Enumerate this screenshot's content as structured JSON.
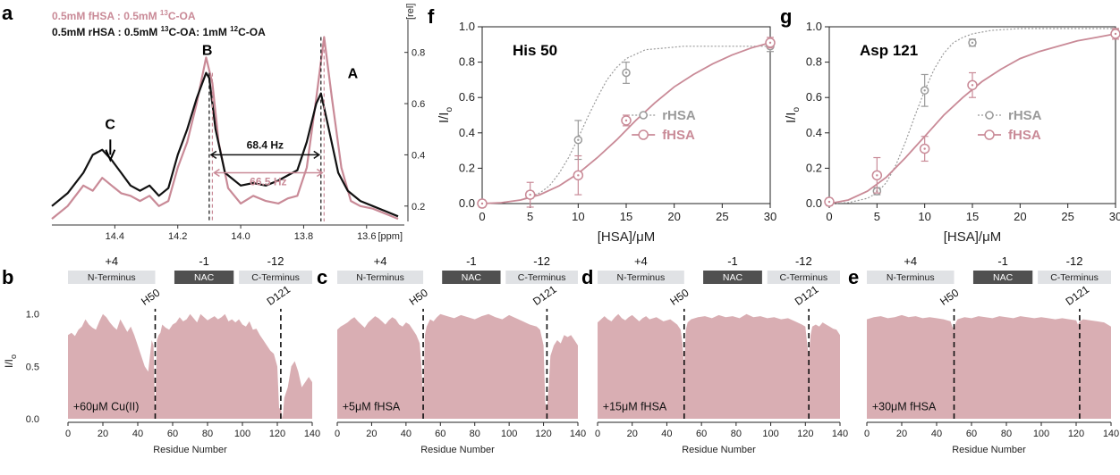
{
  "colors": {
    "fhsa": "#c98a97",
    "rhsa": "#9a9a9a",
    "black": "#111111",
    "fill": "#d9aeb3",
    "gray_box": "#e0e2e5",
    "dark_box": "#505050"
  },
  "chart_data": [
    {
      "panel": "a",
      "type": "line",
      "legend": [
        "0.5mM fHSA : 0.5mM 13C-OA",
        "0.5mM rHSA : 0.5mM 13C-OA: 1mM 12C-OA"
      ],
      "legend_display": [
        {
          "pre": "0.5mM fHSA : 0.5mM ",
          "sup": "13",
          "post": "C-OA"
        },
        {
          "pre": "0.5mM rHSA : 0.5mM ",
          "sup": "13",
          "post": "C-OA: 1mM ",
          "sup2": "12",
          "post2": "C-OA"
        }
      ],
      "xlabel": "[ppm]",
      "ylabel": "[rel]",
      "xlim": [
        14.6,
        13.48
      ],
      "ylim": [
        0.14,
        0.9
      ],
      "xticks": [
        "14.4",
        "14.2",
        "14.0",
        "13.8",
        "13.6"
      ],
      "yticks": [
        "0.2",
        "0.4",
        "0.6",
        "0.8"
      ],
      "peak_labels": [
        "A",
        "B",
        "C"
      ],
      "coupling_black": "68.4 Hz",
      "coupling_pink": "66.5 Hz",
      "peaks": {
        "A_pink_ppm": 13.735,
        "A_black_ppm": 13.745,
        "B_pink_ppm": 14.09,
        "B_black_ppm": 14.1
      },
      "series": [
        {
          "name": "0.5mM fHSA : 0.5mM 13C-OA",
          "x": [
            14.6,
            14.55,
            14.5,
            14.47,
            14.44,
            14.41,
            14.38,
            14.35,
            14.32,
            14.29,
            14.26,
            14.23,
            14.2,
            14.17,
            14.14,
            14.11,
            14.09,
            14.07,
            14.04,
            14.0,
            13.96,
            13.92,
            13.88,
            13.85,
            13.82,
            13.79,
            13.76,
            13.735,
            13.71,
            13.68,
            13.65,
            13.62,
            13.58,
            13.54,
            13.5
          ],
          "y": [
            0.15,
            0.2,
            0.28,
            0.26,
            0.31,
            0.28,
            0.25,
            0.24,
            0.22,
            0.24,
            0.2,
            0.22,
            0.35,
            0.45,
            0.6,
            0.78,
            0.68,
            0.45,
            0.27,
            0.21,
            0.24,
            0.22,
            0.21,
            0.23,
            0.24,
            0.35,
            0.62,
            0.86,
            0.62,
            0.35,
            0.22,
            0.2,
            0.19,
            0.17,
            0.15
          ]
        },
        {
          "name": "0.5mM rHSA : 0.5mM 13C-OA: 1mM 12C-OA",
          "x": [
            14.6,
            14.55,
            14.5,
            14.47,
            14.44,
            14.41,
            14.38,
            14.35,
            14.32,
            14.29,
            14.26,
            14.23,
            14.2,
            14.17,
            14.14,
            14.11,
            14.1,
            14.08,
            14.05,
            14.0,
            13.96,
            13.92,
            13.88,
            13.85,
            13.82,
            13.79,
            13.76,
            13.745,
            13.72,
            13.69,
            13.66,
            13.62,
            13.58,
            13.54,
            13.5
          ],
          "y": [
            0.2,
            0.25,
            0.33,
            0.4,
            0.42,
            0.38,
            0.33,
            0.28,
            0.26,
            0.28,
            0.24,
            0.27,
            0.4,
            0.5,
            0.62,
            0.72,
            0.7,
            0.5,
            0.33,
            0.28,
            0.29,
            0.28,
            0.3,
            0.32,
            0.34,
            0.45,
            0.6,
            0.64,
            0.5,
            0.33,
            0.26,
            0.22,
            0.2,
            0.18,
            0.16
          ]
        }
      ]
    },
    {
      "panel": "f",
      "type": "scatter",
      "title": "His 50",
      "xlabel": "[HSA]/μM",
      "ylabel": "I/I",
      "ylabel_sub": "o",
      "xlim": [
        0,
        30
      ],
      "ylim": [
        0,
        1.0
      ],
      "xticks": [
        0,
        5,
        10,
        15,
        20,
        25,
        30
      ],
      "yticks": [
        "0.0",
        "0.2",
        "0.4",
        "0.6",
        "0.8",
        "1.0"
      ],
      "legend_position": "center-right",
      "series": [
        {
          "name": "rHSA",
          "x": [
            0,
            5,
            10,
            15,
            30
          ],
          "y": [
            0.0,
            0.05,
            0.36,
            0.74,
            0.89
          ],
          "err": [
            0.02,
            0.02,
            0.11,
            0.06,
            0.03
          ],
          "fit_x": [
            0,
            2,
            4,
            6,
            7,
            8,
            9,
            10,
            11,
            12,
            13,
            14,
            15,
            17,
            19,
            21,
            24,
            27,
            30
          ],
          "fit_y": [
            0.0,
            0.005,
            0.02,
            0.06,
            0.1,
            0.17,
            0.26,
            0.37,
            0.49,
            0.6,
            0.7,
            0.77,
            0.82,
            0.87,
            0.88,
            0.89,
            0.89,
            0.89,
            0.89
          ]
        },
        {
          "name": "fHSA",
          "x": [
            0,
            5,
            10,
            15,
            30
          ],
          "y": [
            0.0,
            0.05,
            0.16,
            0.47,
            0.91
          ],
          "err": [
            0.02,
            0.07,
            0.11,
            0.03,
            0.03
          ],
          "fit_x": [
            0,
            2,
            4,
            6,
            8,
            10,
            12,
            14,
            16,
            18,
            20,
            22,
            24,
            26,
            28,
            30
          ],
          "fit_y": [
            0.0,
            0.005,
            0.02,
            0.05,
            0.1,
            0.17,
            0.26,
            0.36,
            0.47,
            0.57,
            0.66,
            0.73,
            0.79,
            0.84,
            0.88,
            0.91
          ]
        }
      ]
    },
    {
      "panel": "g",
      "type": "scatter",
      "title": "Asp 121",
      "xlabel": "[HSA]/μM",
      "ylabel": "I/I",
      "ylabel_sub": "o",
      "xlim": [
        0,
        30
      ],
      "ylim": [
        0,
        1.0
      ],
      "xticks": [
        0,
        5,
        10,
        15,
        20,
        25,
        30
      ],
      "yticks": [
        "0.0",
        "0.2",
        "0.4",
        "0.6",
        "0.8",
        "1.0"
      ],
      "legend_position": "center-right",
      "series": [
        {
          "name": "rHSA",
          "x": [
            0,
            5,
            10,
            15,
            30
          ],
          "y": [
            0.01,
            0.07,
            0.64,
            0.91,
            0.97
          ],
          "err": [
            0.02,
            0.02,
            0.09,
            0.02,
            0.02
          ],
          "fit_x": [
            0,
            2,
            4,
            5,
            6,
            7,
            8,
            9,
            10,
            11,
            12,
            13,
            14,
            15,
            17,
            20,
            24,
            30
          ],
          "fit_y": [
            0.0,
            0.005,
            0.03,
            0.06,
            0.12,
            0.22,
            0.35,
            0.5,
            0.64,
            0.76,
            0.85,
            0.91,
            0.94,
            0.96,
            0.98,
            0.99,
            0.99,
            0.99
          ]
        },
        {
          "name": "fHSA",
          "x": [
            0,
            5,
            10,
            15,
            30
          ],
          "y": [
            0.01,
            0.16,
            0.31,
            0.67,
            0.96
          ],
          "err": [
            0.02,
            0.1,
            0.07,
            0.07,
            0.03
          ],
          "fit_x": [
            0,
            2,
            4,
            6,
            8,
            10,
            12,
            14,
            16,
            18,
            20,
            22,
            24,
            26,
            28,
            30
          ],
          "fit_y": [
            0.0,
            0.02,
            0.07,
            0.15,
            0.26,
            0.38,
            0.5,
            0.6,
            0.69,
            0.76,
            0.82,
            0.86,
            0.89,
            0.92,
            0.94,
            0.96
          ]
        }
      ]
    },
    {
      "panel": "b",
      "type": "area",
      "annotation": "+60μM Cu(II)",
      "x": [
        0,
        2,
        4,
        6,
        8,
        10,
        12,
        14,
        16,
        18,
        20,
        22,
        24,
        26,
        28,
        30,
        32,
        34,
        36,
        38,
        40,
        42,
        44,
        46,
        47,
        48,
        49,
        50,
        51,
        52,
        53,
        54,
        56,
        58,
        60,
        62,
        64,
        66,
        68,
        70,
        72,
        74,
        76,
        78,
        80,
        82,
        84,
        86,
        88,
        90,
        92,
        94,
        96,
        98,
        100,
        102,
        104,
        106,
        108,
        110,
        112,
        114,
        116,
        118,
        120,
        121,
        122,
        123,
        124,
        126,
        128,
        130,
        132,
        134,
        136,
        138,
        140
      ],
      "y": [
        0.8,
        0.82,
        0.79,
        0.85,
        0.88,
        0.95,
        0.9,
        0.87,
        0.85,
        0.93,
        1.0,
        0.97,
        0.92,
        0.88,
        0.85,
        0.95,
        0.89,
        0.83,
        0.88,
        0.8,
        0.7,
        0.6,
        0.5,
        0.45,
        0.6,
        0.75,
        0.7,
        0.05,
        0.75,
        0.8,
        0.82,
        0.9,
        0.87,
        0.85,
        0.9,
        0.92,
        0.97,
        0.93,
        0.95,
        1.0,
        0.96,
        0.92,
        1.0,
        0.97,
        0.94,
        0.96,
        0.98,
        0.95,
        0.97,
        1.0,
        0.93,
        0.95,
        0.92,
        0.95,
        0.9,
        0.88,
        0.93,
        0.85,
        0.86,
        0.8,
        0.75,
        0.7,
        0.65,
        0.62,
        0.5,
        0.1,
        0.1,
        0.0,
        0.2,
        0.3,
        0.5,
        0.55,
        0.45,
        0.3,
        0.35,
        0.4,
        0.35
      ]
    },
    {
      "panel": "c",
      "type": "area",
      "annotation": "+5μM fHSA",
      "x": [
        0,
        2,
        4,
        6,
        8,
        10,
        12,
        14,
        16,
        18,
        20,
        22,
        24,
        26,
        28,
        30,
        32,
        34,
        36,
        38,
        40,
        42,
        44,
        46,
        48,
        49,
        50,
        51,
        52,
        54,
        56,
        58,
        60,
        64,
        68,
        72,
        76,
        80,
        84,
        88,
        92,
        96,
        100,
        104,
        108,
        112,
        116,
        118,
        120,
        121,
        122,
        123,
        124,
        126,
        128,
        130,
        132,
        134,
        136,
        138,
        140
      ],
      "y": [
        0.85,
        0.88,
        0.9,
        0.92,
        0.95,
        0.97,
        0.93,
        0.9,
        0.87,
        0.92,
        0.95,
        0.98,
        0.96,
        0.93,
        0.9,
        0.94,
        0.97,
        0.95,
        0.9,
        0.88,
        0.92,
        0.9,
        0.85,
        0.8,
        0.72,
        0.5,
        0.2,
        0.8,
        0.88,
        0.95,
        0.93,
        0.97,
        1.0,
        0.98,
        0.96,
        0.99,
        0.97,
        0.95,
        0.98,
        1.0,
        0.97,
        0.95,
        0.99,
        0.96,
        0.93,
        0.9,
        0.88,
        0.85,
        0.7,
        0.15,
        0.1,
        0.3,
        0.6,
        0.7,
        0.75,
        0.72,
        0.8,
        0.78,
        0.8,
        0.75,
        0.7
      ]
    },
    {
      "panel": "d",
      "type": "area",
      "annotation": "+15μM fHSA",
      "x": [
        0,
        2,
        4,
        6,
        8,
        10,
        12,
        14,
        16,
        18,
        20,
        22,
        24,
        26,
        28,
        30,
        34,
        38,
        42,
        46,
        48,
        49,
        50,
        51,
        52,
        54,
        58,
        62,
        66,
        70,
        74,
        78,
        82,
        86,
        90,
        94,
        98,
        102,
        106,
        110,
        114,
        118,
        120,
        121,
        122,
        123,
        124,
        126,
        128,
        130,
        132,
        134,
        136,
        138,
        140
      ],
      "y": [
        0.92,
        0.95,
        0.98,
        0.95,
        0.93,
        0.97,
        1.0,
        0.96,
        0.94,
        0.97,
        0.99,
        0.96,
        0.93,
        0.96,
        0.98,
        0.95,
        0.97,
        0.93,
        0.95,
        0.9,
        0.85,
        0.72,
        0.5,
        0.85,
        0.92,
        0.95,
        0.97,
        0.98,
        0.96,
        0.99,
        0.97,
        0.98,
        0.96,
        1.0,
        0.97,
        0.98,
        0.96,
        0.97,
        0.95,
        0.96,
        0.93,
        0.9,
        0.88,
        0.72,
        0.6,
        0.8,
        0.88,
        0.9,
        0.88,
        0.92,
        0.9,
        0.88,
        0.86,
        0.85,
        0.8
      ]
    },
    {
      "panel": "e",
      "type": "area",
      "annotation": "+30μM fHSA",
      "x": [
        0,
        4,
        8,
        12,
        16,
        20,
        24,
        28,
        32,
        36,
        40,
        44,
        48,
        49,
        50,
        51,
        52,
        56,
        60,
        64,
        68,
        72,
        76,
        80,
        84,
        88,
        92,
        96,
        100,
        104,
        108,
        112,
        116,
        120,
        121,
        122,
        124,
        128,
        132,
        136,
        140
      ],
      "y": [
        0.95,
        0.97,
        0.98,
        0.96,
        0.97,
        0.99,
        0.97,
        0.98,
        0.96,
        0.97,
        0.96,
        0.95,
        0.93,
        0.88,
        0.85,
        0.92,
        0.95,
        0.97,
        0.96,
        0.98,
        0.97,
        0.96,
        0.98,
        0.97,
        0.96,
        0.98,
        0.97,
        0.96,
        0.97,
        0.96,
        0.95,
        0.96,
        0.95,
        0.94,
        0.9,
        0.93,
        0.95,
        0.94,
        0.93,
        0.92,
        0.88
      ]
    }
  ],
  "strip_panels": {
    "shared": {
      "xlabel": "Residue Number",
      "ylabel": "I/I",
      "ylabel_sub": "o",
      "xlim": [
        0,
        140
      ],
      "ylim": [
        0,
        1.1
      ],
      "xticks": [
        0,
        20,
        40,
        60,
        80,
        100,
        120,
        140
      ],
      "yticks": [
        "0.0",
        "0.5",
        "1.0"
      ],
      "domain_labels": [
        "N-Terminus",
        "NAC",
        "C-Terminus"
      ],
      "charges": [
        "+4",
        "-1",
        "-12"
      ],
      "marker_h50": "H50",
      "marker_d121": "D121",
      "marker_h50_pos": 50,
      "marker_d121_pos": 122
    }
  }
}
